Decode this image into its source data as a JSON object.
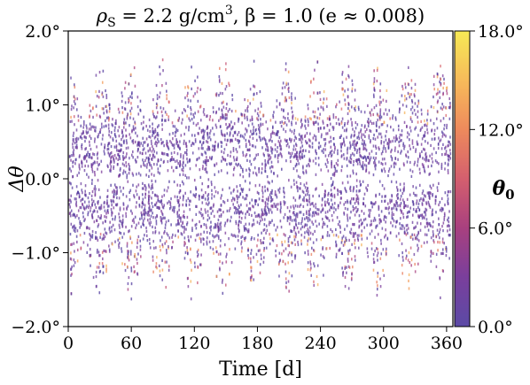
{
  "chart_data": {
    "type": "scatter",
    "title": "ρ_S = 2.2 g/cm³, β = 1.0 (e ≈ 0.008)",
    "title_parts": {
      "symbol": "ρ",
      "sub": "S",
      "density": " = 2.2 g/cm",
      "exp": "3",
      "rest": ", β = 1.0 (e ≈ 0.008)"
    },
    "xlabel": "Time [d]",
    "ylabel": "Δθ",
    "xlim": [
      0,
      366
    ],
    "ylim": [
      -2.0,
      2.0
    ],
    "x_ticks": [
      0,
      60,
      120,
      180,
      240,
      300,
      360
    ],
    "x_tick_labels": [
      "0",
      "60",
      "120",
      "180",
      "240",
      "300",
      "360"
    ],
    "y_ticks": [
      2.0,
      1.0,
      0.0,
      -1.0,
      -2.0
    ],
    "y_tick_labels": [
      "2.0°",
      "1.0°",
      "0.0°",
      "−1.0°",
      "−2.0°"
    ],
    "grid": false,
    "envelope": {
      "upper": 1.65,
      "lower": -1.65,
      "oscillation_period_days": 6.0
    },
    "colorbar": {
      "label": "θ₀",
      "label_symbol": "θ",
      "label_sub": "0",
      "range": [
        0.0,
        18.0
      ],
      "ticks": [
        18.0,
        12.0,
        6.0,
        0.0
      ],
      "tick_labels": [
        "18.0°",
        "12.0°",
        "6.0°",
        "0.0°"
      ],
      "colormap": "plasma",
      "colors": [
        "#5b4aa6",
        "#7a3f9c",
        "#a8407f",
        "#d45f6e",
        "#ee8a5c",
        "#f7bb5a",
        "#f7ea55"
      ]
    }
  }
}
